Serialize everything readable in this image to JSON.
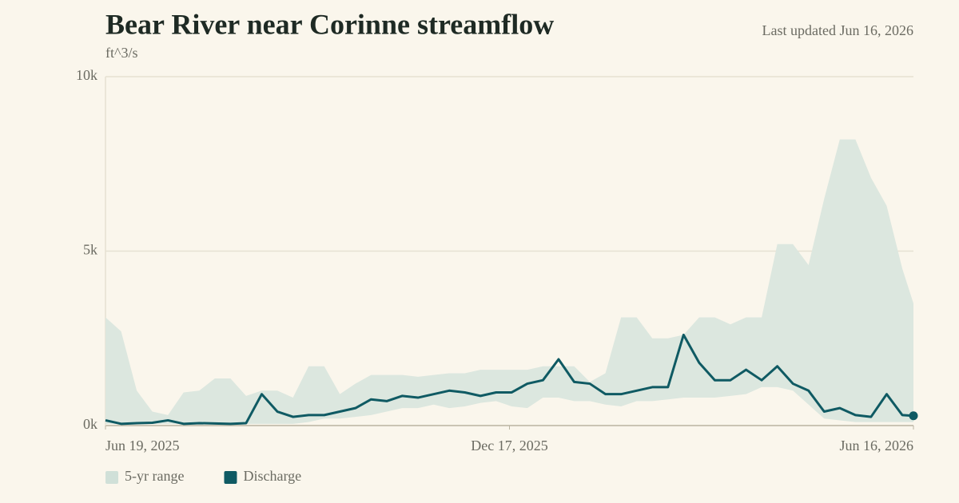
{
  "chart_data": {
    "type": "line",
    "title": "Bear River near Corinne streamflow",
    "subtitle": "Last updated Jun 16, 2026",
    "y_label": "ft^3/s",
    "x": [
      "2025-06-19",
      "2025-06-26",
      "2025-07-03",
      "2025-07-10",
      "2025-07-17",
      "2025-07-24",
      "2025-07-31",
      "2025-08-07",
      "2025-08-14",
      "2025-08-21",
      "2025-08-28",
      "2025-09-04",
      "2025-09-11",
      "2025-09-18",
      "2025-09-25",
      "2025-10-02",
      "2025-10-09",
      "2025-10-16",
      "2025-10-23",
      "2025-10-30",
      "2025-11-06",
      "2025-11-13",
      "2025-11-20",
      "2025-11-27",
      "2025-12-04",
      "2025-12-11",
      "2025-12-18",
      "2025-12-25",
      "2026-01-01",
      "2026-01-08",
      "2026-01-15",
      "2026-01-22",
      "2026-01-29",
      "2026-02-05",
      "2026-02-12",
      "2026-02-19",
      "2026-02-26",
      "2026-03-05",
      "2026-03-12",
      "2026-03-19",
      "2026-03-26",
      "2026-04-02",
      "2026-04-09",
      "2026-04-16",
      "2026-04-23",
      "2026-04-30",
      "2026-05-07",
      "2026-05-14",
      "2026-05-21",
      "2026-05-28",
      "2026-06-04",
      "2026-06-11",
      "2026-06-16"
    ],
    "series": [
      {
        "name": "5-yr range",
        "color": "#dce7df",
        "low": [
          50,
          50,
          50,
          50,
          50,
          50,
          50,
          50,
          50,
          50,
          50,
          50,
          50,
          100,
          200,
          200,
          250,
          300,
          400,
          500,
          500,
          600,
          500,
          550,
          650,
          700,
          550,
          500,
          800,
          800,
          700,
          700,
          600,
          550,
          700,
          700,
          750,
          800,
          800,
          800,
          850,
          900,
          1100,
          1100,
          1000,
          600,
          200,
          150,
          100,
          100,
          100,
          100,
          100
        ],
        "high": [
          3100,
          2700,
          1000,
          400,
          300,
          950,
          1000,
          1350,
          1350,
          850,
          1000,
          1000,
          800,
          1700,
          1700,
          900,
          1200,
          1450,
          1450,
          1450,
          1400,
          1450,
          1500,
          1500,
          1600,
          1600,
          1600,
          1600,
          1700,
          1700,
          1700,
          1250,
          1500,
          3100,
          3100,
          2500,
          2500,
          2600,
          3100,
          3100,
          2900,
          3100,
          3100,
          5200,
          5200,
          4600,
          6500,
          8200,
          8200,
          7100,
          6300,
          4500,
          3500
        ]
      },
      {
        "name": "Discharge",
        "color": "#0f5a63",
        "values": [
          150,
          50,
          70,
          80,
          150,
          50,
          70,
          60,
          50,
          70,
          900,
          400,
          250,
          300,
          300,
          400,
          500,
          750,
          700,
          850,
          800,
          900,
          1000,
          950,
          850,
          950,
          950,
          1200,
          1300,
          1900,
          1250,
          1200,
          900,
          900,
          1000,
          1100,
          1100,
          2600,
          1800,
          1300,
          1300,
          1600,
          1300,
          1700,
          1200,
          1000,
          400,
          500,
          300,
          250,
          900,
          300,
          280
        ]
      }
    ],
    "xlim": [
      "2025-06-19",
      "2026-06-16"
    ],
    "xticks": [
      {
        "value": "2025-06-19",
        "label": "Jun 19, 2025"
      },
      {
        "value": "2025-12-17",
        "label": "Dec 17, 2025"
      },
      {
        "value": "2026-06-16",
        "label": "Jun 16, 2026"
      }
    ],
    "ylim": [
      0,
      10000
    ],
    "yticks": [
      {
        "value": 0,
        "label": "0k"
      },
      {
        "value": 5000,
        "label": "5k"
      },
      {
        "value": 10000,
        "label": "10k"
      }
    ],
    "grid": true
  }
}
